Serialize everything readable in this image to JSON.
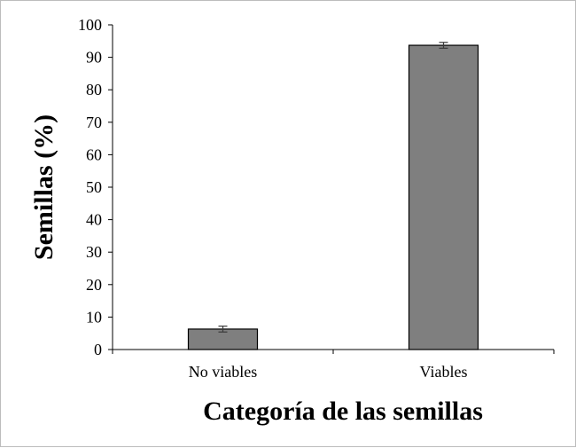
{
  "chart_data": {
    "type": "bar",
    "title": "",
    "xlabel": "Categoría de las semillas",
    "ylabel": "Semillas (%)",
    "categories": [
      "No viables",
      "Viables"
    ],
    "values": [
      6.3,
      93.7
    ],
    "error": [
      0.9,
      0.9
    ],
    "ylim": [
      0,
      100
    ],
    "yticks": [
      0,
      10,
      20,
      30,
      40,
      50,
      60,
      70,
      80,
      90,
      100
    ],
    "grid": false,
    "legend": "none",
    "colors": {
      "bar": "#7f7f7f",
      "bar_edge": "#000000",
      "axis": "#000000",
      "error": "#3a3a3a"
    }
  }
}
